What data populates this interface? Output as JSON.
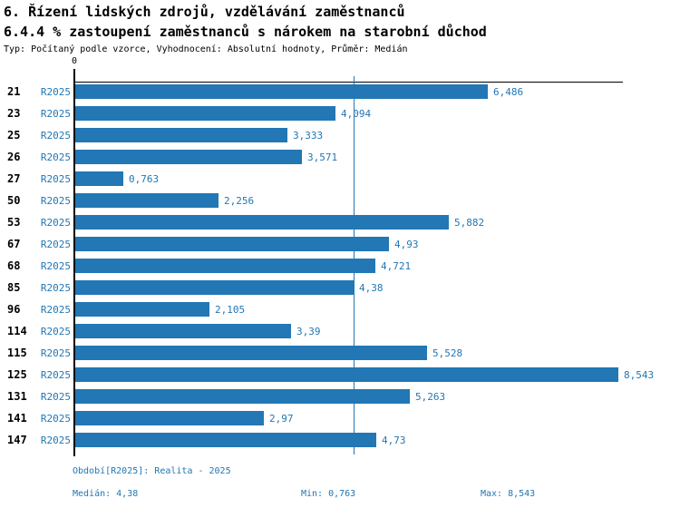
{
  "header": {
    "title": "6. Řízení lidských zdrojů, vzdělávání zaměstnanců",
    "subtitle": "6.4.4 % zastoupení zaměstnanců s nárokem na starobní důchod",
    "meta": "Typ: Počítaný podle vzorce, Vyhodnocení: Absolutní hodnoty, Průměr: Medián"
  },
  "colors": {
    "accent": "#2277b4",
    "axis": "#000000",
    "background": "#ffffff"
  },
  "chart_data": {
    "type": "bar",
    "orientation": "horizontal",
    "title": "6.4.4 % zastoupení zaměstnanců s nárokem na starobní důchod",
    "series_label": "R2025",
    "categories": [
      "21",
      "23",
      "25",
      "26",
      "27",
      "50",
      "53",
      "67",
      "68",
      "85",
      "96",
      "114",
      "115",
      "125",
      "131",
      "141",
      "147"
    ],
    "values": [
      6.486,
      4.094,
      3.333,
      3.571,
      0.763,
      2.256,
      5.882,
      4.93,
      4.721,
      4.38,
      2.105,
      3.39,
      5.528,
      8.543,
      5.263,
      2.97,
      4.73
    ],
    "value_labels": [
      "6,486",
      "4,094",
      "3,333",
      "3,571",
      "0,763",
      "2,256",
      "5,882",
      "4,93",
      "4,721",
      "4,38",
      "2,105",
      "3,39",
      "5,528",
      "8,543",
      "5,263",
      "2,97",
      "4,73"
    ],
    "xlim": [
      0,
      8.543
    ],
    "axis_zero_label": "0",
    "median": 4.38,
    "grid": false,
    "legend_position": "none"
  },
  "footer": {
    "period": "Období[R2025]: Realita - 2025",
    "median": "Medián: 4,38",
    "min": "Min: 0,763",
    "max": "Max: 8,543"
  }
}
